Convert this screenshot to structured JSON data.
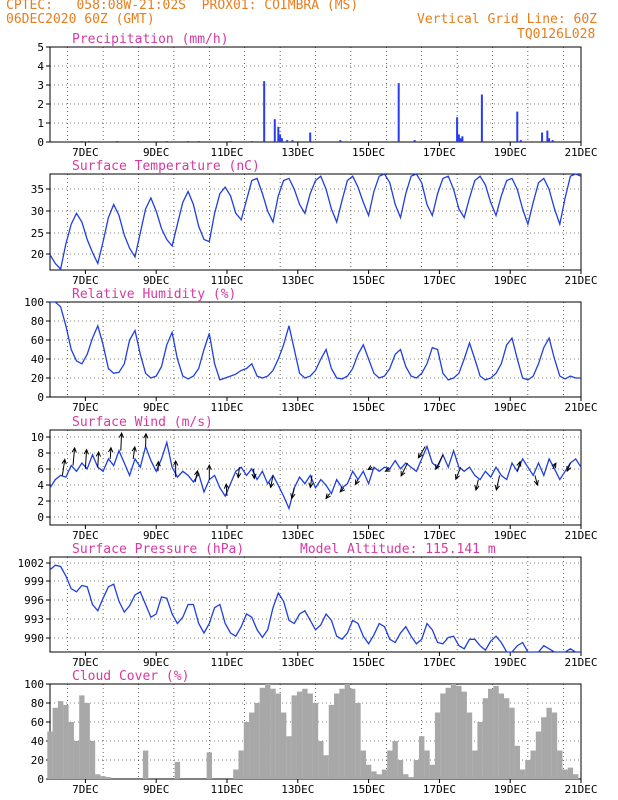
{
  "header": {
    "line1": "CPTEC:   058:08W-21:02S  PROX01: COIMBRA (MS)",
    "line2_left": "06DEC2020 60Z (GMT)",
    "line2_right": "Vertical Grid Line: 60Z",
    "line3_right": "TQ0126L028"
  },
  "colors": {
    "header": "#e87d1e",
    "title": "#d63aa3",
    "series": "#1f3fe0",
    "bars": "#2a3cf0",
    "cloud": "#a8a8a8",
    "arrow": "#000000"
  },
  "x_ticks": [
    "7DEC",
    "9DEC",
    "11DEC",
    "13DEC",
    "15DEC",
    "17DEC",
    "19DEC",
    "21DEC"
  ],
  "chart_data": [
    {
      "type": "bar",
      "title": "Precipitation (mm/h)",
      "yticks": [
        "5",
        "4",
        "3",
        "2",
        "1",
        "0"
      ],
      "ylim": [
        0,
        5
      ],
      "xlim": [
        0,
        15
      ],
      "grid": true,
      "x": [
        0.9,
        1.1,
        1.9,
        3.3,
        3.9,
        4.2,
        5.1,
        5.7,
        6.05,
        6.35,
        6.45,
        6.5,
        6.55,
        6.7,
        6.85,
        7.35,
        8.2,
        9.85,
        10.3,
        11.5,
        11.55,
        11.6,
        11.65,
        12.2,
        13.2,
        13.3,
        13.9,
        14.05,
        14.1,
        14.2
      ],
      "values": [
        0.05,
        0.05,
        0.05,
        0.05,
        0.05,
        0.05,
        0.05,
        0.05,
        3.2,
        1.2,
        0.8,
        0.4,
        0.2,
        0.1,
        0.1,
        0.5,
        0.1,
        3.1,
        0.1,
        1.3,
        0.4,
        0.2,
        0.3,
        2.5,
        1.6,
        0.1,
        0.5,
        0.6,
        0.2,
        0.1
      ]
    },
    {
      "type": "line",
      "title": "Surface Temperature (nC)",
      "yticks": [
        "35",
        "30",
        "25",
        "20"
      ],
      "ylim": [
        17,
        39
      ],
      "xlim": [
        0,
        15
      ],
      "grid": true,
      "x": [
        0,
        0.15,
        0.3,
        0.45,
        0.6,
        0.75,
        0.9,
        1.05,
        1.2,
        1.35,
        1.5,
        1.65,
        1.8,
        1.95,
        2.1,
        2.25,
        2.4,
        2.55,
        2.7,
        2.85,
        3.0,
        3.15,
        3.3,
        3.45,
        3.6,
        3.75,
        3.9,
        4.05,
        4.2,
        4.35,
        4.5,
        4.65,
        4.8,
        4.95,
        5.1,
        5.25,
        5.4,
        5.55,
        5.7,
        5.85,
        6.0,
        6.15,
        6.3,
        6.45,
        6.6,
        6.75,
        6.9,
        7.05,
        7.2,
        7.35,
        7.5,
        7.65,
        7.8,
        7.95,
        8.1,
        8.25,
        8.4,
        8.55,
        8.7,
        8.85,
        9.0,
        9.15,
        9.3,
        9.45,
        9.6,
        9.75,
        9.9,
        10.05,
        10.2,
        10.35,
        10.5,
        10.65,
        10.8,
        10.95,
        11.1,
        11.25,
        11.4,
        11.55,
        11.7,
        11.85,
        12.0,
        12.15,
        12.3,
        12.45,
        12.6,
        12.75,
        12.9,
        13.05,
        13.2,
        13.35,
        13.5,
        13.65,
        13.8,
        13.95,
        14.1,
        14.25,
        14.4,
        14.55,
        14.7,
        14.85,
        15.0
      ],
      "values": [
        20.5,
        18.5,
        17.2,
        23.0,
        27.5,
        30.0,
        28.0,
        24.0,
        21.0,
        18.5,
        23.5,
        29.0,
        32.0,
        29.5,
        25.0,
        22.0,
        20.0,
        25.5,
        31.0,
        33.5,
        30.5,
        26.5,
        24.0,
        22.5,
        27.5,
        32.5,
        35.0,
        32.0,
        27.0,
        24.0,
        23.5,
        30.0,
        34.5,
        36.0,
        34.0,
        30.0,
        28.5,
        33.0,
        37.5,
        38.0,
        34.5,
        30.5,
        28.0,
        34.0,
        37.5,
        38.0,
        35.5,
        32.0,
        30.0,
        34.5,
        37.5,
        38.5,
        35.5,
        31.0,
        28.0,
        33.0,
        37.5,
        38.5,
        36.0,
        32.5,
        29.5,
        35.0,
        38.5,
        39.0,
        37.0,
        32.0,
        29.0,
        34.5,
        38.5,
        39.0,
        37.0,
        32.0,
        29.5,
        34.5,
        38.0,
        38.5,
        35.5,
        31.0,
        29.0,
        33.5,
        37.5,
        38.5,
        36.5,
        32.5,
        29.5,
        34.0,
        37.5,
        38.0,
        35.5,
        31.0,
        27.5,
        32.5,
        37.0,
        38.0,
        35.5,
        31.0,
        27.5,
        33.5,
        38.5,
        39.0,
        38.5
      ]
    },
    {
      "type": "line",
      "title": "Relative Humidity (%)",
      "yticks": [
        "100",
        "80",
        "60",
        "40",
        "20",
        "0"
      ],
      "ylim": [
        0,
        100
      ],
      "xlim": [
        0,
        15
      ],
      "grid": true,
      "x": [
        0,
        0.15,
        0.3,
        0.45,
        0.6,
        0.75,
        0.9,
        1.05,
        1.2,
        1.35,
        1.5,
        1.65,
        1.8,
        1.95,
        2.1,
        2.25,
        2.4,
        2.55,
        2.7,
        2.85,
        3.0,
        3.15,
        3.3,
        3.45,
        3.6,
        3.75,
        3.9,
        4.05,
        4.2,
        4.35,
        4.5,
        4.65,
        4.8,
        4.95,
        5.1,
        5.25,
        5.4,
        5.55,
        5.7,
        5.85,
        6.0,
        6.15,
        6.3,
        6.45,
        6.6,
        6.75,
        6.9,
        7.05,
        7.2,
        7.35,
        7.5,
        7.65,
        7.8,
        7.95,
        8.1,
        8.25,
        8.4,
        8.55,
        8.7,
        8.85,
        9.0,
        9.15,
        9.3,
        9.45,
        9.6,
        9.75,
        9.9,
        10.05,
        10.2,
        10.35,
        10.5,
        10.65,
        10.8,
        10.95,
        11.1,
        11.25,
        11.4,
        11.55,
        11.7,
        11.85,
        12.0,
        12.15,
        12.3,
        12.45,
        12.6,
        12.75,
        12.9,
        13.05,
        13.2,
        13.35,
        13.5,
        13.65,
        13.8,
        13.95,
        14.1,
        14.25,
        14.4,
        14.55,
        14.7,
        14.85,
        15.0
      ],
      "values": [
        100,
        100,
        95,
        75,
        50,
        38,
        35,
        45,
        62,
        75,
        55,
        30,
        25,
        26,
        35,
        60,
        70,
        45,
        25,
        20,
        22,
        32,
        55,
        68,
        40,
        22,
        19,
        22,
        30,
        50,
        67,
        35,
        18,
        20,
        22,
        24,
        28,
        30,
        35,
        22,
        20,
        22,
        28,
        40,
        55,
        75,
        50,
        25,
        20,
        22,
        28,
        40,
        50,
        30,
        20,
        19,
        22,
        30,
        45,
        55,
        40,
        25,
        20,
        22,
        30,
        45,
        50,
        32,
        22,
        20,
        25,
        35,
        52,
        50,
        25,
        18,
        20,
        25,
        40,
        57,
        40,
        22,
        18,
        20,
        25,
        35,
        55,
        62,
        40,
        20,
        18,
        22,
        35,
        52,
        62,
        40,
        22,
        19,
        22,
        20,
        20
      ]
    },
    {
      "type": "line",
      "title": "Surface Wind (m/s)",
      "yticks": [
        "10",
        "8",
        "6",
        "4",
        "2",
        "0"
      ],
      "ylim": [
        -1,
        10.5
      ],
      "xlim": [
        0,
        15
      ],
      "grid": true,
      "x": [
        0,
        0.15,
        0.3,
        0.45,
        0.6,
        0.75,
        0.9,
        1.05,
        1.2,
        1.35,
        1.5,
        1.65,
        1.8,
        1.95,
        2.1,
        2.25,
        2.4,
        2.55,
        2.7,
        2.85,
        3.0,
        3.15,
        3.3,
        3.45,
        3.6,
        3.75,
        3.9,
        4.05,
        4.2,
        4.35,
        4.5,
        4.65,
        4.8,
        4.95,
        5.1,
        5.25,
        5.4,
        5.55,
        5.7,
        5.85,
        6.0,
        6.15,
        6.3,
        6.45,
        6.6,
        6.75,
        6.9,
        7.05,
        7.2,
        7.35,
        7.5,
        7.65,
        7.8,
        7.95,
        8.1,
        8.25,
        8.4,
        8.55,
        8.7,
        8.85,
        9.0,
        9.15,
        9.3,
        9.45,
        9.6,
        9.75,
        9.9,
        10.05,
        10.2,
        10.35,
        10.5,
        10.65,
        10.8,
        10.95,
        11.1,
        11.25,
        11.4,
        11.55,
        11.7,
        11.85,
        12.0,
        12.15,
        12.3,
        12.45,
        12.6,
        12.75,
        12.9,
        13.05,
        13.2,
        13.35,
        13.5,
        13.65,
        13.8,
        13.95,
        14.1,
        14.25,
        14.4,
        14.55,
        14.7,
        14.85,
        15.0
      ],
      "values": [
        3.5,
        4.5,
        5.0,
        4.8,
        6.2,
        5.5,
        6.5,
        5.8,
        7.5,
        6.0,
        5.5,
        7.0,
        6.2,
        8.0,
        6.5,
        5.0,
        7.0,
        6.0,
        8.5,
        6.8,
        5.5,
        7.0,
        9.0,
        6.0,
        4.8,
        5.5,
        5.0,
        4.2,
        5.2,
        3.0,
        4.5,
        5.0,
        3.5,
        2.5,
        4.0,
        5.5,
        6.0,
        5.0,
        5.8,
        4.5,
        5.5,
        4.0,
        5.0,
        3.8,
        2.5,
        1.0,
        3.5,
        4.8,
        4.0,
        5.0,
        3.5,
        4.5,
        3.8,
        2.8,
        4.5,
        3.5,
        4.0,
        5.5,
        4.5,
        5.5,
        4.0,
        6.0,
        5.5,
        6.0,
        5.8,
        6.8,
        5.8,
        6.5,
        6.0,
        5.5,
        7.0,
        8.5,
        6.5,
        6.0,
        7.5,
        6.0,
        8.0,
        6.0,
        5.5,
        6.0,
        5.0,
        4.5,
        5.5,
        4.8,
        6.0,
        5.0,
        4.5,
        6.5,
        5.5,
        7.0,
        6.0,
        5.0,
        6.5,
        5.0,
        7.0,
        5.8,
        4.5,
        5.5,
        6.5,
        7.0,
        6.0
      ],
      "arrows": {
        "x": [
          0.35,
          0.65,
          1.0,
          1.35,
          1.7,
          2.0,
          2.35,
          2.7,
          3.05,
          3.55,
          4.1,
          4.5,
          5.0,
          5.35,
          5.75,
          6.3,
          6.9,
          7.4,
          7.9,
          8.3,
          8.7,
          9.1,
          9.6,
          10.1,
          10.6,
          11.1,
          11.6,
          12.1,
          12.7,
          13.2,
          13.7,
          14.2,
          14.7
        ],
        "dx": [
          0.3,
          0.2,
          0.15,
          0.1,
          0.1,
          0.1,
          0.2,
          0.05,
          0.05,
          0.0,
          0.3,
          0.0,
          -0.1,
          -0.15,
          0.1,
          -0.3,
          -0.3,
          -0.2,
          -0.45,
          -0.45,
          -0.3,
          -0.5,
          -0.55,
          -0.8,
          -0.85,
          -0.9,
          -0.6,
          -0.3,
          -0.4,
          0.35,
          0.3,
          0.4,
          -0.4
        ],
        "dy": [
          2.0,
          2.2,
          2.4,
          1.9,
          1.4,
          2.2,
          1.5,
          1.6,
          1.2,
          2.0,
          1.4,
          1.8,
          1.5,
          -1.3,
          -1.2,
          -1.5,
          -1.3,
          -1.5,
          -0.6,
          -0.5,
          -0.6,
          -0.3,
          -0.3,
          -1.6,
          -1.4,
          -1.8,
          -1.5,
          -1.3,
          -1.8,
          1.2,
          -1.2,
          0.7,
          -1.0
        ]
      }
    },
    {
      "type": "line",
      "title": "Surface Pressure (hPa)",
      "annotation": "Model Altitude: 115.141 m",
      "yticks": [
        "1002",
        "999",
        "996",
        "993",
        "990"
      ],
      "ylim": [
        988.5,
        1003.5
      ],
      "xlim": [
        0,
        15
      ],
      "grid": true,
      "x": [
        0,
        0.15,
        0.3,
        0.45,
        0.6,
        0.75,
        0.9,
        1.05,
        1.2,
        1.35,
        1.5,
        1.65,
        1.8,
        1.95,
        2.1,
        2.25,
        2.4,
        2.55,
        2.7,
        2.85,
        3.0,
        3.15,
        3.3,
        3.45,
        3.6,
        3.75,
        3.9,
        4.05,
        4.2,
        4.35,
        4.5,
        4.65,
        4.8,
        4.95,
        5.1,
        5.25,
        5.4,
        5.55,
        5.7,
        5.85,
        6.0,
        6.15,
        6.3,
        6.45,
        6.6,
        6.75,
        6.9,
        7.05,
        7.2,
        7.35,
        7.5,
        7.65,
        7.8,
        7.95,
        8.1,
        8.25,
        8.4,
        8.55,
        8.7,
        8.85,
        9.0,
        9.15,
        9.3,
        9.45,
        9.6,
        9.75,
        9.9,
        10.05,
        10.2,
        10.35,
        10.5,
        10.65,
        10.8,
        10.95,
        11.1,
        11.25,
        11.4,
        11.55,
        11.7,
        11.85,
        12.0,
        12.15,
        12.3,
        12.45,
        12.6,
        12.75,
        12.9,
        13.05,
        13.2,
        13.35,
        13.5,
        13.65,
        13.8,
        13.95,
        14.1,
        14.25,
        14.4,
        14.55,
        14.7,
        14.85,
        15.0
      ],
      "values": [
        1001.5,
        1002.2,
        1002.0,
        1000.5,
        998.5,
        998.0,
        999.0,
        998.8,
        996.0,
        995.0,
        997.0,
        998.8,
        999.2,
        996.5,
        994.8,
        995.8,
        997.5,
        998.0,
        996.0,
        994.0,
        994.5,
        997.2,
        997.0,
        994.5,
        993.0,
        994.0,
        996.0,
        996.0,
        993.0,
        991.5,
        993.0,
        995.5,
        996.0,
        993.0,
        991.5,
        991.0,
        992.5,
        994.5,
        994.0,
        992.0,
        990.8,
        992.0,
        995.5,
        997.8,
        996.5,
        993.5,
        993.0,
        994.5,
        995.0,
        993.5,
        992.0,
        992.8,
        994.5,
        993.5,
        991.0,
        990.5,
        991.5,
        993.5,
        993.0,
        991.0,
        989.8,
        991.2,
        993.0,
        992.5,
        990.5,
        990.0,
        991.5,
        992.5,
        991.0,
        989.8,
        990.5,
        993.0,
        992.0,
        990.0,
        989.8,
        990.8,
        991.0,
        989.5,
        989.0,
        990.5,
        990.5,
        989.5,
        988.8,
        990.2,
        991.0,
        990.0,
        988.5,
        988.0,
        989.5,
        990.0,
        988.5,
        987.0,
        988.0,
        989.5,
        989.0,
        987.5,
        987.0,
        988.5,
        989.0,
        987.5,
        986.5
      ]
    },
    {
      "type": "area",
      "title": "Cloud Cover (%)",
      "yticks": [
        "100",
        "80",
        "60",
        "40",
        "20",
        "0"
      ],
      "ylim": [
        0,
        100
      ],
      "xlim": [
        0,
        15
      ],
      "grid": true,
      "x": [
        0,
        0.15,
        0.3,
        0.45,
        0.6,
        0.75,
        0.9,
        1.05,
        1.2,
        1.35,
        1.5,
        1.65,
        1.8,
        1.95,
        2.1,
        2.25,
        2.4,
        2.55,
        2.7,
        2.85,
        3.0,
        3.15,
        3.3,
        3.45,
        3.6,
        3.75,
        3.9,
        4.05,
        4.2,
        4.35,
        4.5,
        4.65,
        4.8,
        4.95,
        5.1,
        5.25,
        5.4,
        5.55,
        5.7,
        5.85,
        6.0,
        6.15,
        6.3,
        6.45,
        6.6,
        6.75,
        6.9,
        7.05,
        7.2,
        7.35,
        7.5,
        7.65,
        7.8,
        7.95,
        8.1,
        8.25,
        8.4,
        8.55,
        8.7,
        8.85,
        9.0,
        9.15,
        9.3,
        9.45,
        9.6,
        9.75,
        9.9,
        10.05,
        10.2,
        10.35,
        10.5,
        10.65,
        10.8,
        10.95,
        11.1,
        11.25,
        11.4,
        11.55,
        11.7,
        11.85,
        12.0,
        12.15,
        12.3,
        12.45,
        12.6,
        12.75,
        12.9,
        13.05,
        13.2,
        13.35,
        13.5,
        13.65,
        13.8,
        13.95,
        14.1,
        14.25,
        14.4,
        14.55,
        14.7,
        14.85,
        15.0
      ],
      "values": [
        50,
        75,
        82,
        78,
        60,
        40,
        88,
        80,
        40,
        5,
        3,
        2,
        0,
        0,
        0,
        0,
        0,
        0,
        30,
        0,
        0,
        0,
        0,
        0,
        18,
        0,
        0,
        0,
        0,
        0,
        28,
        0,
        0,
        0,
        0,
        10,
        30,
        60,
        70,
        80,
        96,
        100,
        95,
        90,
        70,
        45,
        88,
        92,
        95,
        90,
        80,
        40,
        25,
        78,
        90,
        95,
        100,
        95,
        80,
        30,
        15,
        8,
        5,
        10,
        30,
        40,
        20,
        5,
        2,
        20,
        45,
        30,
        15,
        70,
        90,
        96,
        100,
        98,
        92,
        70,
        30,
        60,
        85,
        95,
        98,
        90,
        85,
        75,
        35,
        10,
        20,
        30,
        50,
        65,
        75,
        70,
        30,
        10,
        12,
        5,
        0
      ]
    }
  ]
}
